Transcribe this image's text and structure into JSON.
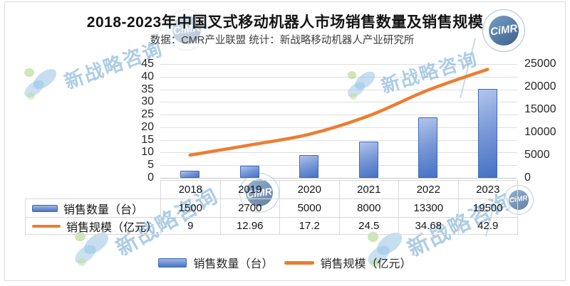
{
  "title": "2018-2023年中国叉式移动机器人市场销售数量及销售规模",
  "subtitle": "数据：CMR产业联盟 统计：新战略移动机器人产业研究所",
  "watermark": {
    "text": "新战略咨询",
    "badge_text": "CiMR"
  },
  "chart_data": {
    "type": "combo-bar-line",
    "categories": [
      "2018",
      "2019",
      "2020",
      "2021",
      "2022",
      "2023"
    ],
    "series": [
      {
        "name": "销售数量（台）",
        "type": "bar",
        "axis": "right",
        "color": "#4472c4",
        "values": [
          1500,
          2700,
          5000,
          8000,
          13300,
          19500
        ]
      },
      {
        "name": "销售规模（亿元）",
        "type": "line",
        "axis": "left",
        "color": "#ed7d31",
        "values": [
          9,
          12.96,
          17.2,
          24.5,
          34.68,
          42.9
        ]
      }
    ],
    "left_axis": {
      "min": 0,
      "max": 45,
      "step": 5
    },
    "right_axis": {
      "min": 0,
      "max": 25000,
      "step": 5000
    },
    "grid": true,
    "legend_position": "bottom",
    "data_table_shown": true,
    "gridline_color": "#dedede",
    "table_border_color": "#d9d9d9"
  }
}
